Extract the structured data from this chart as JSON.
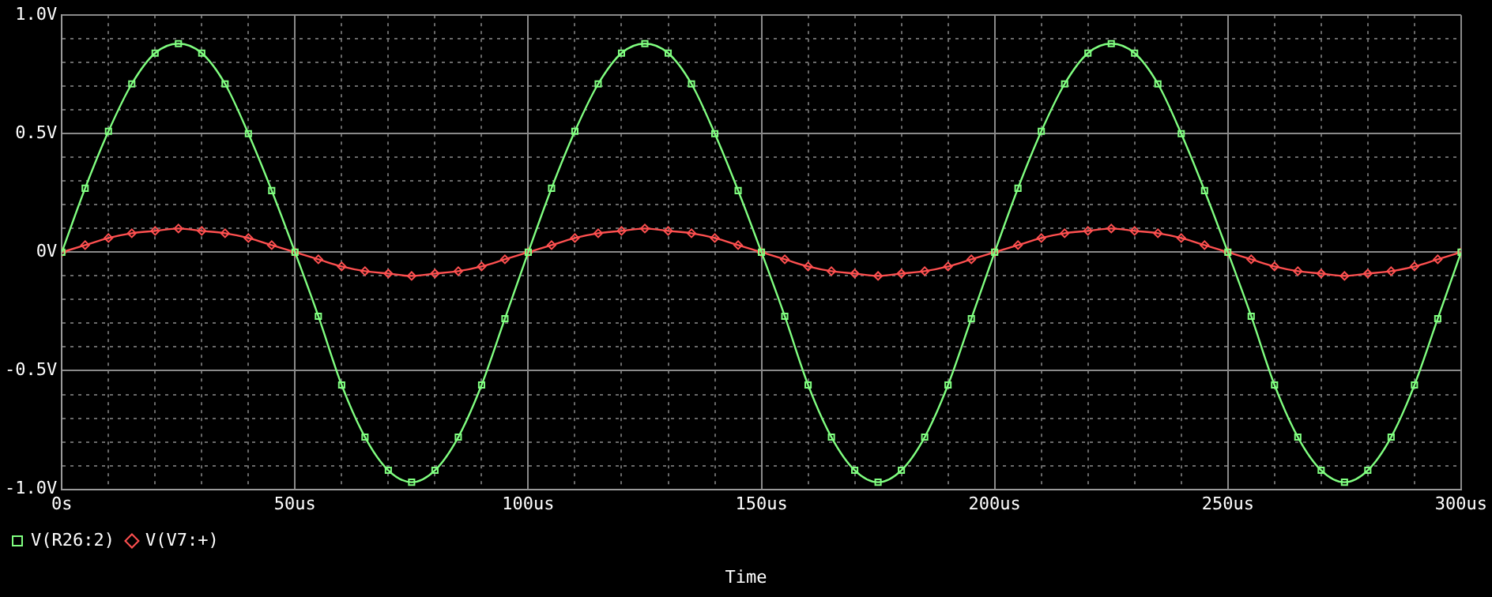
{
  "chart_data": {
    "type": "line",
    "xlabel": "Time",
    "x": [
      0,
      5,
      10,
      15,
      20,
      25,
      30,
      35,
      40,
      45,
      50,
      55,
      60,
      65,
      70,
      75,
      80,
      85,
      90,
      95,
      100,
      105,
      110,
      115,
      120,
      125,
      130,
      135,
      140,
      145,
      150,
      155,
      160,
      165,
      170,
      175,
      180,
      185,
      190,
      195,
      200,
      205,
      210,
      215,
      220,
      225,
      230,
      235,
      240,
      245,
      250,
      255,
      260,
      265,
      270,
      275,
      280,
      285,
      290,
      295,
      300
    ],
    "series": [
      {
        "name": "V(R26:2)",
        "color": "#80ff80",
        "marker": "square",
        "values": [
          0,
          0.27,
          0.51,
          0.71,
          0.84,
          0.88,
          0.84,
          0.71,
          0.5,
          0.26,
          0,
          -0.27,
          -0.56,
          -0.78,
          -0.92,
          -0.97,
          -0.92,
          -0.78,
          -0.56,
          -0.28,
          0,
          0.27,
          0.51,
          0.71,
          0.84,
          0.88,
          0.84,
          0.71,
          0.5,
          0.26,
          0,
          -0.27,
          -0.56,
          -0.78,
          -0.92,
          -0.97,
          -0.92,
          -0.78,
          -0.56,
          -0.28,
          0,
          0.27,
          0.51,
          0.71,
          0.84,
          0.88,
          0.84,
          0.71,
          0.5,
          0.26,
          0,
          -0.27,
          -0.56,
          -0.78,
          -0.92,
          -0.97,
          -0.92,
          -0.78,
          -0.56,
          -0.28,
          0
        ]
      },
      {
        "name": "V(V7:+)",
        "color": "#ff5050",
        "marker": "diamond",
        "values": [
          0,
          0.03,
          0.06,
          0.08,
          0.09,
          0.1,
          0.09,
          0.08,
          0.06,
          0.03,
          0,
          -0.03,
          -0.06,
          -0.08,
          -0.09,
          -0.1,
          -0.09,
          -0.08,
          -0.06,
          -0.03,
          0,
          0.03,
          0.06,
          0.08,
          0.09,
          0.1,
          0.09,
          0.08,
          0.06,
          0.03,
          0,
          -0.03,
          -0.06,
          -0.08,
          -0.09,
          -0.1,
          -0.09,
          -0.08,
          -0.06,
          -0.03,
          0,
          0.03,
          0.06,
          0.08,
          0.09,
          0.1,
          0.09,
          0.08,
          0.06,
          0.03,
          0,
          -0.03,
          -0.06,
          -0.08,
          -0.09,
          -0.1,
          -0.09,
          -0.08,
          -0.06,
          -0.03,
          0
        ]
      }
    ],
    "xlim": [
      0,
      300
    ],
    "xticks": [
      {
        "value": 0,
        "label": "0s"
      },
      {
        "value": 10,
        "label": null
      },
      {
        "value": 20,
        "label": null
      },
      {
        "value": 30,
        "label": null
      },
      {
        "value": 40,
        "label": null
      },
      {
        "value": 50,
        "label": "50us"
      },
      {
        "value": 60,
        "label": null
      },
      {
        "value": 70,
        "label": null
      },
      {
        "value": 80,
        "label": null
      },
      {
        "value": 90,
        "label": null
      },
      {
        "value": 100,
        "label": "100us"
      },
      {
        "value": 110,
        "label": null
      },
      {
        "value": 120,
        "label": null
      },
      {
        "value": 130,
        "label": null
      },
      {
        "value": 140,
        "label": null
      },
      {
        "value": 150,
        "label": "150us"
      },
      {
        "value": 160,
        "label": null
      },
      {
        "value": 170,
        "label": null
      },
      {
        "value": 180,
        "label": null
      },
      {
        "value": 190,
        "label": null
      },
      {
        "value": 200,
        "label": "200us"
      },
      {
        "value": 210,
        "label": null
      },
      {
        "value": 220,
        "label": null
      },
      {
        "value": 230,
        "label": null
      },
      {
        "value": 240,
        "label": null
      },
      {
        "value": 250,
        "label": "250us"
      },
      {
        "value": 260,
        "label": null
      },
      {
        "value": 270,
        "label": null
      },
      {
        "value": 280,
        "label": null
      },
      {
        "value": 290,
        "label": null
      },
      {
        "value": 300,
        "label": "300us"
      }
    ],
    "ylim": [
      -1,
      1
    ],
    "yticks": [
      {
        "value": -1,
        "label": "-1.0V"
      },
      {
        "value": -0.9,
        "label": null
      },
      {
        "value": -0.8,
        "label": null
      },
      {
        "value": -0.7,
        "label": null
      },
      {
        "value": -0.6,
        "label": null
      },
      {
        "value": -0.5,
        "label": "-0.5V"
      },
      {
        "value": -0.4,
        "label": null
      },
      {
        "value": -0.3,
        "label": null
      },
      {
        "value": -0.2,
        "label": null
      },
      {
        "value": -0.1,
        "label": null
      },
      {
        "value": 0,
        "label": "0V"
      },
      {
        "value": 0.1,
        "label": null
      },
      {
        "value": 0.2,
        "label": null
      },
      {
        "value": 0.3,
        "label": null
      },
      {
        "value": 0.4,
        "label": null
      },
      {
        "value": 0.5,
        "label": "0.5V"
      },
      {
        "value": 0.6,
        "label": null
      },
      {
        "value": 0.7,
        "label": null
      },
      {
        "value": 0.8,
        "label": null
      },
      {
        "value": 0.9,
        "label": null
      },
      {
        "value": 1,
        "label": "1.0V"
      }
    ],
    "grid": true,
    "legend": "bottom left",
    "line_style": "solid"
  }
}
